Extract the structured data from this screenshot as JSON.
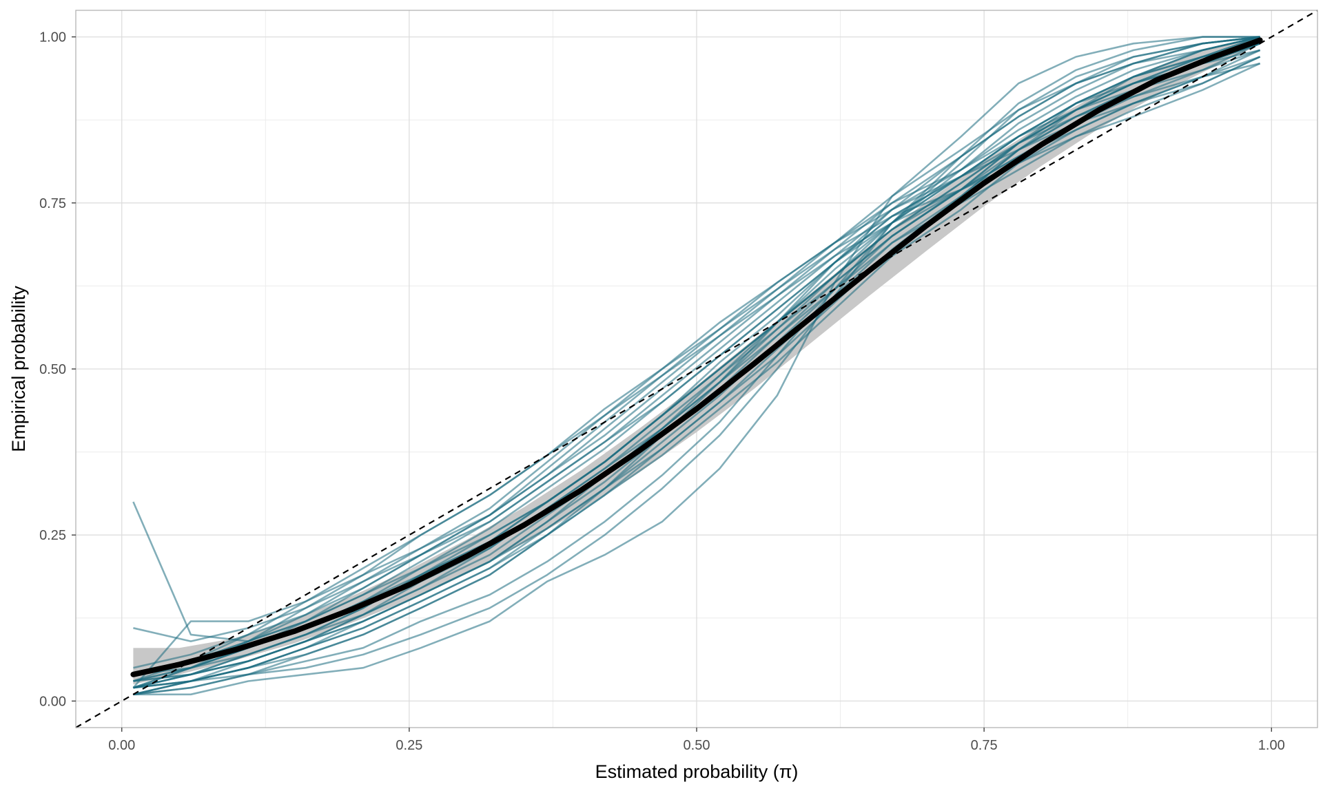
{
  "chart_data": {
    "type": "line",
    "title": "",
    "xlabel": "Estimated probability (π)",
    "ylabel": "Empirical probability",
    "xlim": [
      -0.04,
      1.04
    ],
    "ylim": [
      -0.04,
      1.04
    ],
    "x_ticks": [
      0.0,
      0.25,
      0.5,
      0.75,
      1.0
    ],
    "x_tick_labels": [
      "0.00",
      "0.25",
      "0.50",
      "0.75",
      "1.00"
    ],
    "y_ticks": [
      0.0,
      0.25,
      0.5,
      0.75,
      1.0
    ],
    "y_tick_labels": [
      "0.00",
      "0.25",
      "0.50",
      "0.75",
      "1.00"
    ],
    "grid": true,
    "legend": "none",
    "colors": {
      "replicate_lines": "#1b6b80",
      "band": "#c8c8c8",
      "mean_curve": "#000000",
      "reference_line": "#000000",
      "grid_major": "#dddddd",
      "grid_minor": "#ececec",
      "panel_border": "#b3b3b3"
    },
    "reference_line": {
      "style": "dashed",
      "x": [
        -0.04,
        1.04
      ],
      "y": [
        -0.04,
        1.04
      ]
    },
    "mean_curve": {
      "x": [
        0.01,
        0.05,
        0.1,
        0.15,
        0.2,
        0.25,
        0.3,
        0.35,
        0.4,
        0.45,
        0.5,
        0.55,
        0.6,
        0.65,
        0.7,
        0.75,
        0.8,
        0.85,
        0.9,
        0.95,
        0.99
      ],
      "y": [
        0.04,
        0.055,
        0.078,
        0.105,
        0.138,
        0.175,
        0.218,
        0.265,
        0.318,
        0.377,
        0.44,
        0.508,
        0.578,
        0.648,
        0.716,
        0.78,
        0.838,
        0.89,
        0.935,
        0.97,
        0.995
      ]
    },
    "band": {
      "x": [
        0.01,
        0.05,
        0.1,
        0.15,
        0.2,
        0.25,
        0.3,
        0.35,
        0.4,
        0.45,
        0.5,
        0.55,
        0.6,
        0.65,
        0.7,
        0.75,
        0.8,
        0.85,
        0.9,
        0.95,
        0.99
      ],
      "lower": [
        0.025,
        0.04,
        0.062,
        0.087,
        0.118,
        0.152,
        0.193,
        0.238,
        0.288,
        0.344,
        0.405,
        0.47,
        0.54,
        0.61,
        0.678,
        0.745,
        0.806,
        0.862,
        0.912,
        0.955,
        0.99
      ],
      "upper": [
        0.08,
        0.08,
        0.095,
        0.123,
        0.158,
        0.198,
        0.243,
        0.292,
        0.348,
        0.41,
        0.475,
        0.545,
        0.615,
        0.685,
        0.752,
        0.813,
        0.867,
        0.915,
        0.955,
        0.985,
        1.0
      ]
    },
    "x": [
      0.01,
      0.06,
      0.11,
      0.16,
      0.21,
      0.26,
      0.32,
      0.37,
      0.42,
      0.47,
      0.52,
      0.57,
      0.62,
      0.67,
      0.73,
      0.78,
      0.83,
      0.88,
      0.94,
      0.99
    ],
    "series": [
      {
        "values": [
          0.3,
          0.1,
          0.09,
          0.12,
          0.16,
          0.2,
          0.25,
          0.3,
          0.36,
          0.43,
          0.5,
          0.57,
          0.64,
          0.71,
          0.78,
          0.84,
          0.89,
          0.93,
          0.97,
          1.0
        ]
      },
      {
        "values": [
          0.11,
          0.09,
          0.11,
          0.14,
          0.18,
          0.22,
          0.27,
          0.33,
          0.39,
          0.45,
          0.52,
          0.59,
          0.66,
          0.72,
          0.79,
          0.85,
          0.9,
          0.94,
          0.98,
          1.0
        ]
      },
      {
        "values": [
          0.02,
          0.12,
          0.12,
          0.15,
          0.19,
          0.23,
          0.28,
          0.34,
          0.4,
          0.47,
          0.54,
          0.61,
          0.68,
          0.75,
          0.82,
          0.88,
          0.93,
          0.97,
          0.99,
          1.0
        ]
      },
      {
        "values": [
          0.01,
          0.01,
          0.03,
          0.04,
          0.05,
          0.08,
          0.12,
          0.18,
          0.22,
          0.27,
          0.35,
          0.46,
          0.63,
          0.76,
          0.85,
          0.93,
          0.97,
          0.99,
          1.0,
          1.0
        ]
      },
      {
        "values": [
          0.02,
          0.03,
          0.04,
          0.05,
          0.07,
          0.1,
          0.14,
          0.19,
          0.25,
          0.32,
          0.4,
          0.5,
          0.61,
          0.72,
          0.82,
          0.9,
          0.95,
          0.98,
          1.0,
          1.0
        ]
      },
      {
        "values": [
          0.01,
          0.02,
          0.04,
          0.06,
          0.08,
          0.12,
          0.16,
          0.21,
          0.27,
          0.34,
          0.42,
          0.52,
          0.62,
          0.72,
          0.81,
          0.89,
          0.94,
          0.97,
          0.99,
          1.0
        ]
      },
      {
        "values": [
          0.02,
          0.04,
          0.06,
          0.09,
          0.12,
          0.16,
          0.21,
          0.27,
          0.33,
          0.4,
          0.47,
          0.55,
          0.63,
          0.7,
          0.77,
          0.84,
          0.89,
          0.93,
          0.96,
          0.99
        ]
      },
      {
        "values": [
          0.03,
          0.05,
          0.08,
          0.11,
          0.15,
          0.19,
          0.25,
          0.3,
          0.36,
          0.43,
          0.5,
          0.57,
          0.64,
          0.71,
          0.78,
          0.84,
          0.89,
          0.93,
          0.97,
          0.99
        ]
      },
      {
        "values": [
          0.01,
          0.03,
          0.06,
          0.09,
          0.13,
          0.18,
          0.23,
          0.29,
          0.35,
          0.41,
          0.48,
          0.55,
          0.62,
          0.69,
          0.75,
          0.8,
          0.85,
          0.89,
          0.93,
          0.97
        ]
      },
      {
        "values": [
          0.03,
          0.06,
          0.1,
          0.15,
          0.2,
          0.25,
          0.31,
          0.37,
          0.43,
          0.49,
          0.55,
          0.61,
          0.67,
          0.72,
          0.77,
          0.82,
          0.86,
          0.9,
          0.94,
          0.98
        ]
      },
      {
        "values": [
          0.02,
          0.05,
          0.09,
          0.14,
          0.19,
          0.25,
          0.31,
          0.37,
          0.44,
          0.5,
          0.56,
          0.62,
          0.68,
          0.73,
          0.77,
          0.81,
          0.85,
          0.88,
          0.92,
          0.96
        ]
      },
      {
        "values": [
          0.04,
          0.06,
          0.09,
          0.12,
          0.16,
          0.21,
          0.27,
          0.33,
          0.39,
          0.46,
          0.53,
          0.6,
          0.67,
          0.74,
          0.8,
          0.86,
          0.91,
          0.95,
          0.98,
          1.0
        ]
      },
      {
        "values": [
          0.02,
          0.04,
          0.07,
          0.1,
          0.14,
          0.19,
          0.24,
          0.3,
          0.36,
          0.43,
          0.5,
          0.57,
          0.64,
          0.71,
          0.77,
          0.83,
          0.88,
          0.92,
          0.96,
          0.99
        ]
      },
      {
        "values": [
          0.01,
          0.03,
          0.05,
          0.08,
          0.11,
          0.15,
          0.2,
          0.26,
          0.32,
          0.39,
          0.46,
          0.54,
          0.62,
          0.7,
          0.77,
          0.84,
          0.9,
          0.94,
          0.97,
          1.0
        ]
      },
      {
        "values": [
          0.05,
          0.07,
          0.1,
          0.13,
          0.17,
          0.22,
          0.28,
          0.34,
          0.41,
          0.48,
          0.55,
          0.62,
          0.69,
          0.76,
          0.83,
          0.89,
          0.93,
          0.96,
          0.98,
          1.0
        ]
      },
      {
        "values": [
          0.02,
          0.03,
          0.05,
          0.07,
          0.1,
          0.14,
          0.19,
          0.25,
          0.32,
          0.4,
          0.48,
          0.57,
          0.66,
          0.74,
          0.82,
          0.88,
          0.93,
          0.96,
          0.99,
          1.0
        ]
      },
      {
        "values": [
          0.03,
          0.05,
          0.08,
          0.12,
          0.17,
          0.22,
          0.28,
          0.35,
          0.42,
          0.49,
          0.56,
          0.63,
          0.69,
          0.75,
          0.8,
          0.85,
          0.89,
          0.92,
          0.95,
          0.98
        ]
      },
      {
        "values": [
          0.01,
          0.02,
          0.04,
          0.07,
          0.1,
          0.14,
          0.19,
          0.25,
          0.31,
          0.38,
          0.45,
          0.53,
          0.61,
          0.69,
          0.76,
          0.83,
          0.88,
          0.92,
          0.96,
          0.99
        ]
      },
      {
        "values": [
          0.04,
          0.06,
          0.09,
          0.13,
          0.18,
          0.23,
          0.29,
          0.36,
          0.43,
          0.5,
          0.57,
          0.63,
          0.69,
          0.74,
          0.79,
          0.83,
          0.87,
          0.9,
          0.93,
          0.97
        ]
      },
      {
        "values": [
          0.02,
          0.04,
          0.06,
          0.09,
          0.13,
          0.17,
          0.22,
          0.28,
          0.34,
          0.41,
          0.48,
          0.56,
          0.63,
          0.7,
          0.77,
          0.82,
          0.87,
          0.91,
          0.95,
          0.99
        ]
      },
      {
        "values": [
          0.03,
          0.04,
          0.07,
          0.1,
          0.13,
          0.17,
          0.23,
          0.29,
          0.35,
          0.42,
          0.49,
          0.56,
          0.64,
          0.72,
          0.8,
          0.87,
          0.92,
          0.96,
          0.99,
          1.0
        ]
      },
      {
        "values": [
          0.01,
          0.03,
          0.05,
          0.08,
          0.12,
          0.16,
          0.21,
          0.27,
          0.34,
          0.41,
          0.49,
          0.57,
          0.65,
          0.72,
          0.79,
          0.85,
          0.9,
          0.93,
          0.96,
          0.98
        ]
      },
      {
        "values": [
          0.02,
          0.05,
          0.08,
          0.11,
          0.15,
          0.2,
          0.26,
          0.32,
          0.38,
          0.45,
          0.52,
          0.59,
          0.66,
          0.73,
          0.79,
          0.85,
          0.9,
          0.94,
          0.97,
          0.99
        ]
      },
      {
        "values": [
          0.03,
          0.04,
          0.06,
          0.09,
          0.12,
          0.16,
          0.21,
          0.26,
          0.32,
          0.38,
          0.45,
          0.52,
          0.6,
          0.68,
          0.76,
          0.83,
          0.89,
          0.94,
          0.98,
          1.0
        ]
      },
      {
        "values": [
          0.02,
          0.03,
          0.05,
          0.08,
          0.11,
          0.15,
          0.2,
          0.25,
          0.31,
          0.37,
          0.44,
          0.51,
          0.59,
          0.67,
          0.74,
          0.81,
          0.86,
          0.9,
          0.94,
          0.97
        ]
      },
      {
        "values": [
          0.04,
          0.05,
          0.07,
          0.1,
          0.14,
          0.19,
          0.24,
          0.3,
          0.36,
          0.43,
          0.51,
          0.58,
          0.66,
          0.73,
          0.79,
          0.84,
          0.88,
          0.91,
          0.94,
          0.96
        ]
      }
    ]
  }
}
